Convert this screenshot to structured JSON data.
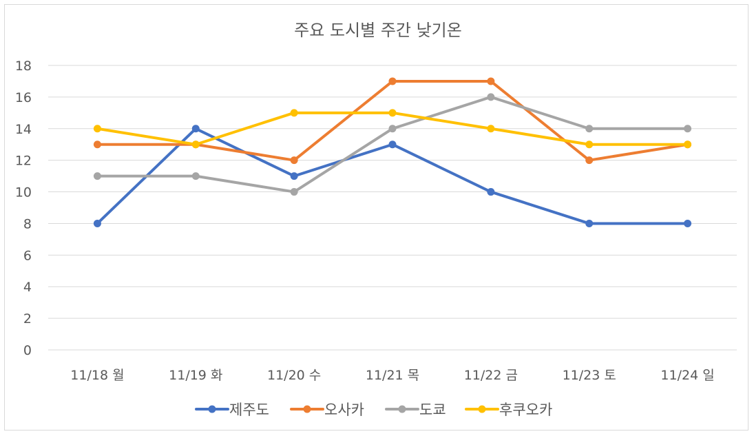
{
  "chart_data": {
    "type": "line",
    "title": "주요 도시별 주간 낮기온",
    "xlabel": "",
    "ylabel": "",
    "categories": [
      "11/18 월",
      "11/19 화",
      "11/20 수",
      "11/21 목",
      "11/22 금",
      "11/23 토",
      "11/24 일"
    ],
    "ylim": [
      0,
      18
    ],
    "yticks": [
      0,
      2,
      4,
      6,
      8,
      10,
      12,
      14,
      16,
      18
    ],
    "grid": true,
    "legend": "bottom",
    "series": [
      {
        "name": "제주도",
        "color": "#4472c4",
        "values": [
          8,
          14,
          11,
          13,
          10,
          8,
          8
        ]
      },
      {
        "name": "오사카",
        "color": "#ed7d31",
        "values": [
          13,
          13,
          12,
          17,
          17,
          12,
          13
        ]
      },
      {
        "name": "도쿄",
        "color": "#a5a5a5",
        "values": [
          11,
          11,
          10,
          14,
          16,
          14,
          14
        ]
      },
      {
        "name": "후쿠오카",
        "color": "#ffc000",
        "values": [
          14,
          13,
          15,
          15,
          14,
          13,
          13
        ]
      }
    ]
  }
}
